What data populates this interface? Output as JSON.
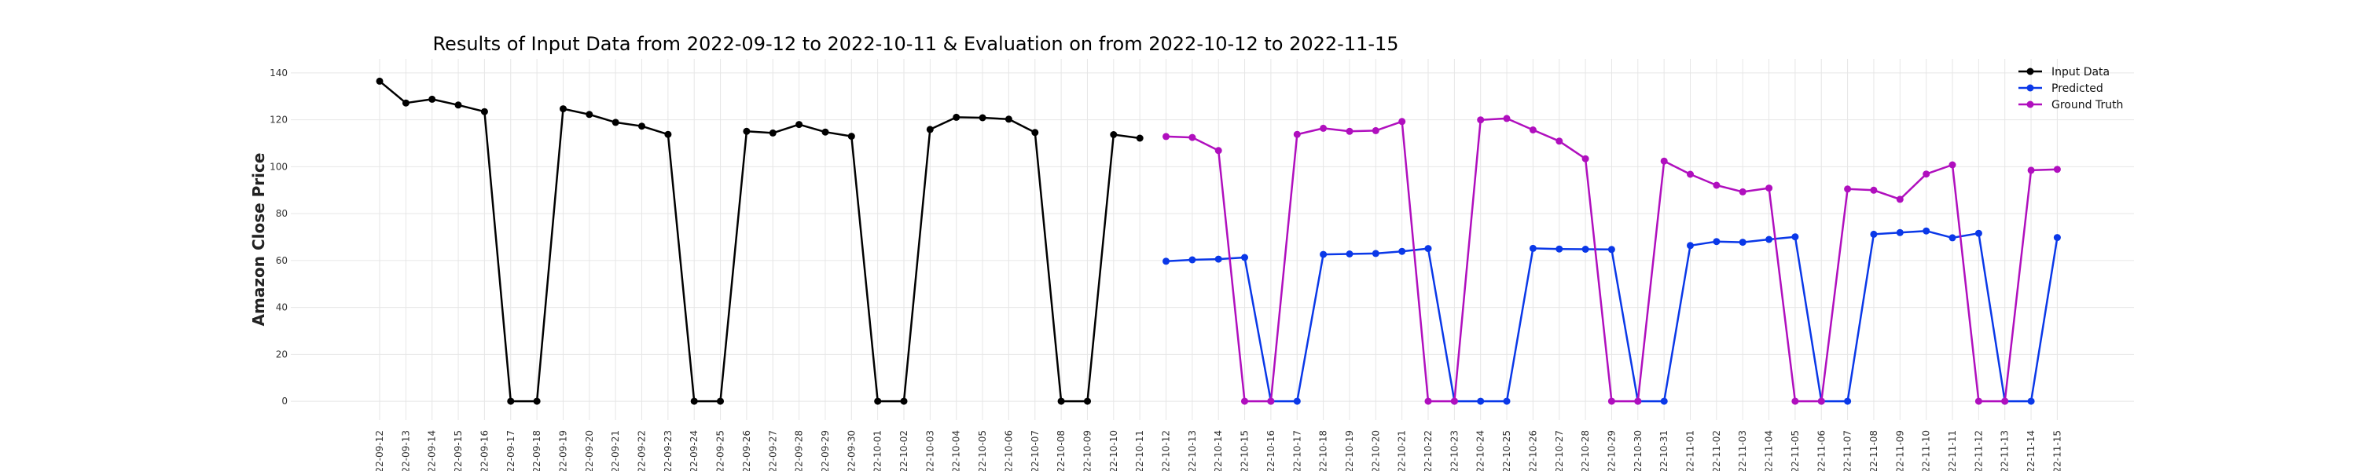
{
  "chart_data": {
    "type": "line",
    "title": "Results of Input Data from 2022-09-12 to 2022-10-11 & Evaluation on from 2022-10-12 to 2022-11-15",
    "xlabel": "",
    "ylabel": "Amazon Close Price",
    "ylim": [
      -8,
      146
    ],
    "yticks": [
      0,
      20,
      40,
      60,
      80,
      100,
      120,
      140
    ],
    "grid": true,
    "legend_position": "top-right",
    "x": [
      "2022-09-12",
      "2022-09-13",
      "2022-09-14",
      "2022-09-15",
      "2022-09-16",
      "2022-09-17",
      "2022-09-18",
      "2022-09-19",
      "2022-09-20",
      "2022-09-21",
      "2022-09-22",
      "2022-09-23",
      "2022-09-24",
      "2022-09-25",
      "2022-09-26",
      "2022-09-27",
      "2022-09-28",
      "2022-09-29",
      "2022-09-30",
      "2022-10-01",
      "2022-10-02",
      "2022-10-03",
      "2022-10-04",
      "2022-10-05",
      "2022-10-06",
      "2022-10-07",
      "2022-10-08",
      "2022-10-09",
      "2022-10-10",
      "2022-10-11",
      "2022-10-12",
      "2022-10-13",
      "2022-10-14",
      "2022-10-15",
      "2022-10-16",
      "2022-10-17",
      "2022-10-18",
      "2022-10-19",
      "2022-10-20",
      "2022-10-21",
      "2022-10-22",
      "2022-10-23",
      "2022-10-24",
      "2022-10-25",
      "2022-10-26",
      "2022-10-27",
      "2022-10-28",
      "2022-10-29",
      "2022-10-30",
      "2022-10-31",
      "2022-11-01",
      "2022-11-02",
      "2022-11-03",
      "2022-11-04",
      "2022-11-05",
      "2022-11-06",
      "2022-11-07",
      "2022-11-08",
      "2022-11-09",
      "2022-11-10",
      "2022-11-11",
      "2022-11-12",
      "2022-11-13",
      "2022-11-14",
      "2022-11-15"
    ],
    "tick_labels": [
      "22-09-12",
      "22-09-13",
      "22-09-14",
      "22-09-15",
      "22-09-16",
      "22-09-17",
      "22-09-18",
      "22-09-19",
      "22-09-20",
      "22-09-21",
      "22-09-22",
      "22-09-23",
      "22-09-24",
      "22-09-25",
      "22-09-26",
      "22-09-27",
      "22-09-28",
      "22-09-29",
      "22-09-30",
      "22-10-01",
      "22-10-02",
      "22-10-03",
      "22-10-04",
      "22-10-05",
      "22-10-06",
      "22-10-07",
      "22-10-08",
      "22-10-09",
      "22-10-10",
      "22-10-11",
      "22-10-12",
      "22-10-13",
      "22-10-14",
      "22-10-15",
      "22-10-16",
      "22-10-17",
      "22-10-18",
      "22-10-19",
      "22-10-20",
      "22-10-21",
      "22-10-22",
      "22-10-23",
      "22-10-24",
      "22-10-25",
      "22-10-26",
      "22-10-27",
      "22-10-28",
      "22-10-29",
      "22-10-30",
      "22-10-31",
      "22-11-01",
      "22-11-02",
      "22-11-03",
      "22-11-04",
      "22-11-05",
      "22-11-06",
      "22-11-07",
      "22-11-08",
      "22-11-09",
      "22-11-10",
      "22-11-11",
      "22-11-12",
      "22-11-13",
      "22-11-14",
      "22-11-15"
    ],
    "series": [
      {
        "name": "Input Data",
        "color": "#000000",
        "x": [
          "2022-09-12",
          "2022-09-13",
          "2022-09-14",
          "2022-09-15",
          "2022-09-16",
          "2022-09-17",
          "2022-09-18",
          "2022-09-19",
          "2022-09-20",
          "2022-09-21",
          "2022-09-22",
          "2022-09-23",
          "2022-09-24",
          "2022-09-25",
          "2022-09-26",
          "2022-09-27",
          "2022-09-28",
          "2022-09-29",
          "2022-09-30",
          "2022-10-01",
          "2022-10-02",
          "2022-10-03",
          "2022-10-04",
          "2022-10-05",
          "2022-10-06",
          "2022-10-07",
          "2022-10-08",
          "2022-10-09",
          "2022-10-10",
          "2022-10-11"
        ],
        "values": [
          136.5,
          127.2,
          128.8,
          126.3,
          123.5,
          0,
          0,
          124.7,
          122.3,
          118.9,
          117.3,
          113.8,
          0,
          0,
          115.1,
          114.4,
          118.0,
          114.8,
          113.0,
          0,
          0,
          115.9,
          121.1,
          120.9,
          120.3,
          114.6,
          0,
          0,
          113.7,
          112.2
        ]
      },
      {
        "name": "Predicted",
        "color": "#0a38e8",
        "x": [
          "2022-10-12",
          "2022-10-13",
          "2022-10-14",
          "2022-10-15",
          "2022-10-16",
          "2022-10-17",
          "2022-10-18",
          "2022-10-19",
          "2022-10-20",
          "2022-10-21",
          "2022-10-22",
          "2022-10-23",
          "2022-10-24",
          "2022-10-25",
          "2022-10-26",
          "2022-10-27",
          "2022-10-28",
          "2022-10-29",
          "2022-10-30",
          "2022-10-31",
          "2022-11-01",
          "2022-11-02",
          "2022-11-03",
          "2022-11-04",
          "2022-11-05",
          "2022-11-06",
          "2022-11-07",
          "2022-11-08",
          "2022-11-09",
          "2022-11-10",
          "2022-11-11",
          "2022-11-12",
          "2022-11-13",
          "2022-11-14",
          "2022-11-15"
        ],
        "values": [
          59.7,
          60.3,
          60.6,
          61.3,
          0,
          0,
          62.6,
          62.8,
          63.0,
          63.9,
          65.1,
          0,
          0,
          0,
          65.2,
          64.9,
          64.8,
          64.7,
          0,
          0,
          66.4,
          68.1,
          67.8,
          69.0,
          70.1,
          0,
          0,
          71.2,
          71.9,
          72.6,
          69.7,
          71.6,
          0,
          0,
          69.8
        ]
      },
      {
        "name": "Ground Truth",
        "color": "#b00fbe",
        "x": [
          "2022-10-12",
          "2022-10-13",
          "2022-10-14",
          "2022-10-15",
          "2022-10-16",
          "2022-10-17",
          "2022-10-18",
          "2022-10-19",
          "2022-10-20",
          "2022-10-21",
          "2022-10-22",
          "2022-10-23",
          "2022-10-24",
          "2022-10-25",
          "2022-10-26",
          "2022-10-27",
          "2022-10-28",
          "2022-10-29",
          "2022-10-30",
          "2022-10-31",
          "2022-11-01",
          "2022-11-02",
          "2022-11-03",
          "2022-11-04",
          "2022-11-05",
          "2022-11-06",
          "2022-11-07",
          "2022-11-08",
          "2022-11-09",
          "2022-11-10",
          "2022-11-11",
          "2022-11-12",
          "2022-11-13",
          "2022-11-14",
          "2022-11-15"
        ],
        "values": [
          112.9,
          112.5,
          106.9,
          0,
          0,
          113.8,
          116.4,
          115.1,
          115.4,
          119.3,
          0,
          0,
          120.0,
          120.6,
          115.7,
          110.9,
          103.4,
          0,
          0,
          102.4,
          96.8,
          92.1,
          89.3,
          90.9,
          0,
          0,
          90.5,
          90.0,
          86.1,
          96.9,
          100.8,
          0,
          0,
          98.5,
          98.9
        ]
      }
    ]
  }
}
